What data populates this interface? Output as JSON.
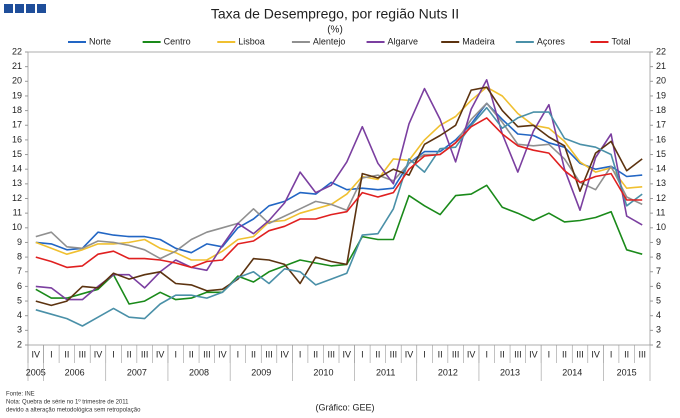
{
  "chart_data": {
    "type": "line",
    "title": "Taxa de Desemprego, por região Nuts II",
    "subtitle": "(%)",
    "categories": [
      "IV",
      "I",
      "II",
      "III",
      "IV",
      "I",
      "II",
      "III",
      "IV",
      "I",
      "II",
      "III",
      "IV",
      "I",
      "II",
      "III",
      "IV",
      "I",
      "II",
      "III",
      "IV",
      "I",
      "II",
      "III",
      "IV",
      "I",
      "II",
      "III",
      "IV",
      "I",
      "II",
      "III",
      "IV",
      "I",
      "II",
      "III",
      "IV",
      "I",
      "II",
      "III"
    ],
    "year_groups": [
      {
        "label": "2005",
        "count": 1
      },
      {
        "label": "2006",
        "count": 4
      },
      {
        "label": "2007",
        "count": 4
      },
      {
        "label": "2008",
        "count": 4
      },
      {
        "label": "2009",
        "count": 4
      },
      {
        "label": "2010",
        "count": 4
      },
      {
        "label": "2011",
        "count": 4
      },
      {
        "label": "2012",
        "count": 4
      },
      {
        "label": "2013",
        "count": 4
      },
      {
        "label": "2014",
        "count": 4
      },
      {
        "label": "2015",
        "count": 3
      }
    ],
    "ylim": [
      2,
      22
    ],
    "yticks": [
      2,
      3,
      4,
      5,
      6,
      7,
      8,
      9,
      10,
      11,
      12,
      13,
      14,
      15,
      16,
      17,
      18,
      19,
      20,
      21,
      22
    ],
    "grid": false,
    "legend": "top",
    "series": [
      {
        "name": "Norte",
        "color": "#2266c4",
        "values": [
          9.0,
          8.9,
          8.5,
          8.6,
          9.7,
          9.5,
          9.4,
          9.4,
          9.2,
          8.6,
          8.3,
          8.9,
          8.7,
          10.0,
          10.6,
          11.5,
          11.8,
          12.4,
          12.3,
          13.1,
          12.6,
          12.7,
          12.6,
          12.7,
          14.4,
          15.2,
          15.2,
          16.0,
          17.1,
          18.5,
          17.4,
          16.4,
          16.3,
          15.8,
          15.5,
          14.4,
          14.0,
          14.2,
          13.5,
          13.6
        ]
      },
      {
        "name": "Centro",
        "color": "#1a8a1a",
        "values": [
          5.8,
          5.2,
          5.2,
          5.5,
          5.8,
          6.8,
          4.8,
          5.0,
          5.6,
          5.1,
          5.2,
          5.6,
          5.6,
          6.7,
          6.3,
          7.0,
          7.4,
          7.8,
          7.6,
          7.4,
          7.5,
          9.4,
          9.2,
          9.2,
          12.2,
          11.5,
          10.9,
          12.2,
          12.3,
          12.9,
          11.4,
          11.0,
          10.5,
          11.0,
          10.4,
          10.5,
          10.7,
          11.1,
          8.5,
          8.2
        ]
      },
      {
        "name": "Lisboa",
        "color": "#f0c030",
        "values": [
          9.0,
          8.6,
          8.2,
          8.5,
          8.9,
          8.9,
          9.0,
          9.2,
          8.6,
          8.3,
          7.8,
          7.8,
          8.4,
          9.2,
          9.4,
          10.4,
          10.5,
          11.0,
          11.3,
          11.6,
          12.3,
          13.5,
          13.3,
          14.7,
          14.6,
          16.0,
          17.0,
          17.6,
          18.7,
          19.6,
          19.0,
          17.8,
          17.0,
          16.8,
          15.9,
          14.5,
          13.8,
          14.1,
          12.7,
          12.8
        ]
      },
      {
        "name": "Alentejo",
        "color": "#909090",
        "values": [
          9.4,
          9.7,
          8.7,
          8.6,
          9.1,
          9.0,
          8.8,
          8.5,
          7.9,
          8.4,
          9.2,
          9.7,
          10.0,
          10.3,
          11.3,
          10.3,
          10.8,
          11.3,
          11.8,
          11.6,
          11.2,
          13.4,
          13.6,
          13.2,
          14.4,
          15.0,
          15.0,
          15.8,
          17.4,
          18.5,
          17.2,
          15.7,
          15.6,
          15.7,
          14.7,
          13.1,
          12.6,
          14.2,
          12.1,
          11.6
        ]
      },
      {
        "name": "Algarve",
        "color": "#7b3fa0",
        "values": [
          6.0,
          5.9,
          5.1,
          5.1,
          6.0,
          6.8,
          6.8,
          5.9,
          7.0,
          7.8,
          7.3,
          7.1,
          8.8,
          10.3,
          9.6,
          10.5,
          11.7,
          13.8,
          12.4,
          12.9,
          14.5,
          16.9,
          14.4,
          13.0,
          17.1,
          19.5,
          17.4,
          14.5,
          18.1,
          20.1,
          16.4,
          13.8,
          16.6,
          18.4,
          14.0,
          11.2,
          14.8,
          16.4,
          10.8,
          10.2
        ]
      },
      {
        "name": "Madeira",
        "color": "#5c3310",
        "values": [
          5.0,
          4.7,
          5.0,
          6.0,
          5.9,
          6.9,
          6.5,
          6.8,
          7.0,
          6.2,
          6.1,
          5.7,
          5.8,
          6.5,
          7.9,
          7.8,
          7.5,
          6.2,
          8.0,
          7.7,
          7.5,
          13.7,
          13.4,
          14.0,
          13.6,
          15.7,
          16.3,
          17.0,
          19.4,
          19.6,
          18.0,
          16.9,
          17.0,
          16.2,
          15.6,
          12.5,
          15.1,
          15.9,
          13.9,
          14.7
        ]
      },
      {
        "name": "Açores",
        "color": "#4a90a8",
        "values": [
          4.4,
          4.1,
          3.8,
          3.3,
          3.9,
          4.5,
          3.9,
          3.8,
          4.8,
          5.4,
          5.4,
          5.2,
          5.6,
          6.6,
          7.0,
          6.2,
          7.2,
          7.0,
          6.1,
          6.5,
          6.9,
          9.5,
          9.6,
          11.3,
          14.7,
          13.8,
          15.4,
          15.5,
          17.0,
          18.2,
          16.8,
          17.5,
          17.9,
          17.9,
          16.1,
          15.7,
          15.5,
          15.0,
          11.5,
          12.3
        ]
      },
      {
        "name": "Total",
        "color": "#e02020",
        "values": [
          8.0,
          7.7,
          7.3,
          7.4,
          8.2,
          8.4,
          7.9,
          7.9,
          7.8,
          7.6,
          7.3,
          7.7,
          7.8,
          8.9,
          9.1,
          9.8,
          10.1,
          10.6,
          10.6,
          10.9,
          11.1,
          12.4,
          12.1,
          12.4,
          14.0,
          14.9,
          15.0,
          15.8,
          16.9,
          17.5,
          16.4,
          15.6,
          15.3,
          15.1,
          13.9,
          13.1,
          13.5,
          13.7,
          11.9,
          11.9
        ]
      }
    ],
    "source": "Fonte: INE",
    "notes": [
      "Nota: Quebra de série no 1º trimestre de 2011",
      "devido a alteração metodológica sem retropolação"
    ],
    "credit": "(Gráfico: GEE)"
  }
}
